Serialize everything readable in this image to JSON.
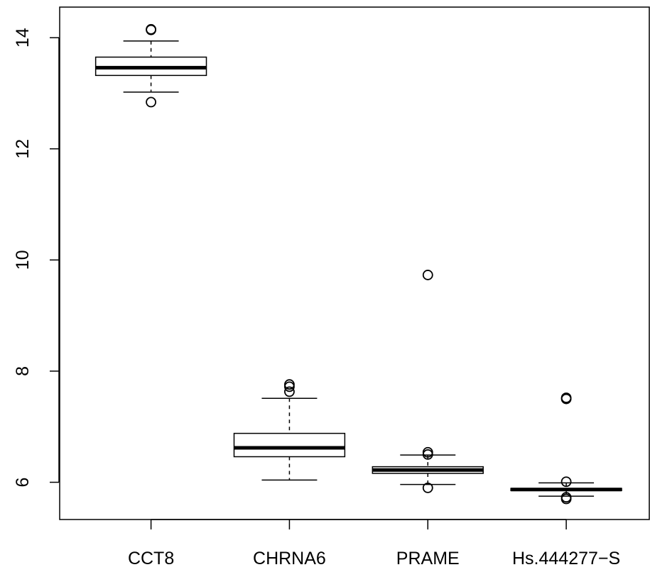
{
  "chart_data": {
    "type": "boxplot",
    "title": "",
    "xlabel": "",
    "ylabel": "",
    "ylim": [
      5.33,
      14.55
    ],
    "yticks": [
      6,
      8,
      10,
      12,
      14
    ],
    "categories": [
      "CCT8",
      "CHRNA6",
      "PRAME",
      "Hs.444277−S"
    ],
    "boxes": [
      {
        "label": "CCT8",
        "whisker_low": 13.02,
        "q1": 13.32,
        "median": 13.46,
        "q3": 13.65,
        "whisker_high": 13.94,
        "outliers": [
          14.15,
          14.14,
          12.84
        ]
      },
      {
        "label": "CHRNA6",
        "whisker_low": 6.04,
        "q1": 6.46,
        "median": 6.62,
        "q3": 6.88,
        "whisker_high": 7.51,
        "outliers": [
          7.76,
          7.72,
          7.63
        ]
      },
      {
        "label": "PRAME",
        "whisker_low": 5.96,
        "q1": 6.16,
        "median": 6.22,
        "q3": 6.28,
        "whisker_high": 6.49,
        "outliers": [
          9.73,
          6.54,
          6.5,
          5.9
        ]
      },
      {
        "label": "Hs.444277−S",
        "whisker_low": 5.75,
        "q1": 5.85,
        "median": 5.87,
        "q3": 5.89,
        "whisker_high": 5.99,
        "outliers": [
          7.52,
          7.5,
          6.01,
          5.73,
          5.7
        ]
      }
    ],
    "grid": false,
    "legend": "none"
  }
}
